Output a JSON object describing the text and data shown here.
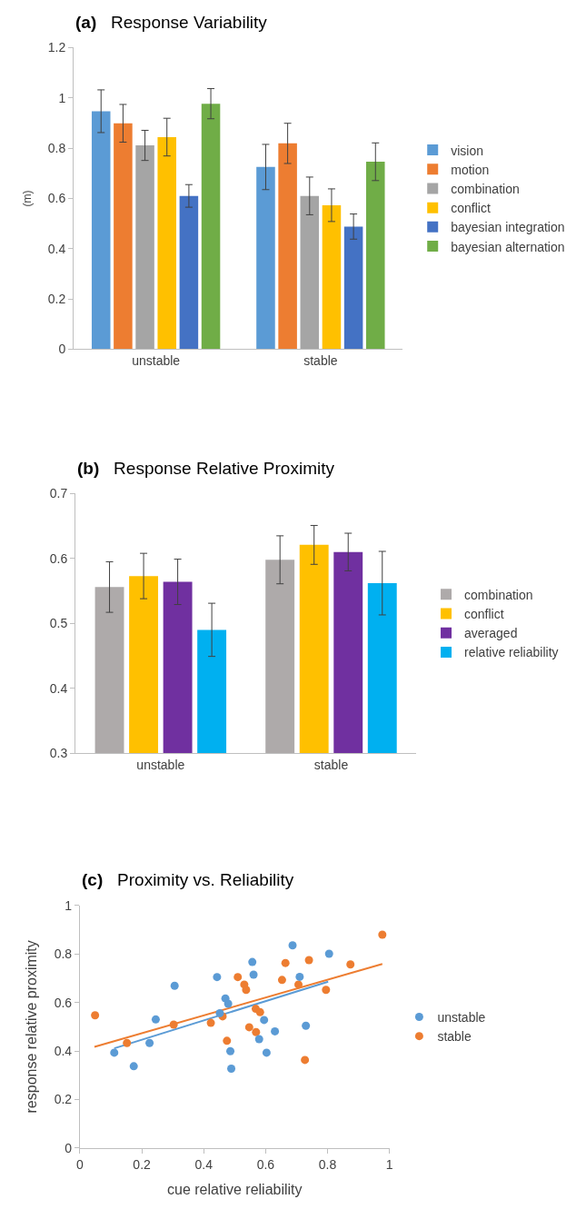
{
  "chart_data": [
    {
      "type": "bar",
      "title": "(a) Response Variability",
      "ylabel": "(m)",
      "categories": [
        "unstable",
        "stable"
      ],
      "ylim": [
        0,
        1.2
      ],
      "yticks": [
        0,
        0.2,
        0.4,
        0.6,
        0.8,
        1,
        1.2
      ],
      "legend": "right",
      "series": [
        {
          "name": "vision",
          "color": "#5b9bd5",
          "values": [
            0.947,
            0.725
          ],
          "errors": [
            0.085,
            0.09
          ]
        },
        {
          "name": "motion",
          "color": "#ed7d31",
          "values": [
            0.899,
            0.819
          ],
          "errors": [
            0.075,
            0.08
          ]
        },
        {
          "name": "combination",
          "color": "#a5a5a5",
          "values": [
            0.811,
            0.61
          ],
          "errors": [
            0.06,
            0.075
          ]
        },
        {
          "name": "conflict",
          "color": "#ffc000",
          "values": [
            0.844,
            0.573
          ],
          "errors": [
            0.075,
            0.065
          ]
        },
        {
          "name": "bayesian integration",
          "color": "#4472c4",
          "values": [
            0.61,
            0.488
          ],
          "errors": [
            0.045,
            0.05
          ]
        },
        {
          "name": "bayesian alternation",
          "color": "#70ad47",
          "values": [
            0.977,
            0.746
          ],
          "errors": [
            0.06,
            0.075
          ]
        }
      ]
    },
    {
      "type": "bar",
      "title": "(b) Response Relative Proximity",
      "categories": [
        "unstable",
        "stable"
      ],
      "ylim": [
        0.3,
        0.7
      ],
      "yticks": [
        0.3,
        0.4,
        0.5,
        0.6,
        0.7
      ],
      "legend": "right",
      "series": [
        {
          "name": "combination",
          "color": "#aeaaaa",
          "values": [
            0.556,
            0.598
          ],
          "errors": [
            0.039,
            0.037
          ]
        },
        {
          "name": "conflict",
          "color": "#ffc000",
          "values": [
            0.573,
            0.621
          ],
          "errors": [
            0.035,
            0.03
          ]
        },
        {
          "name": "averaged",
          "color": "#7030a0",
          "values": [
            0.564,
            0.61
          ],
          "errors": [
            0.035,
            0.029
          ]
        },
        {
          "name": "relative reliability",
          "color": "#00b0f0",
          "values": [
            0.49,
            0.562
          ],
          "errors": [
            0.041,
            0.049
          ]
        }
      ]
    },
    {
      "type": "scatter",
      "title": "(c) Proximity vs. Reliability",
      "xlabel": "cue relative reliability",
      "ylabel": "response relative proximity",
      "xlim": [
        0,
        1
      ],
      "xticks": [
        0,
        0.2,
        0.4,
        0.6,
        0.8,
        1
      ],
      "ylim": [
        0,
        1
      ],
      "yticks": [
        0,
        0.2,
        0.4,
        0.6,
        0.8,
        1
      ],
      "legend": "right",
      "marker": "circle",
      "series": [
        {
          "name": "unstable",
          "color": "#5b9bd5",
          "x": [
            0.111,
            0.174,
            0.225,
            0.245,
            0.306,
            0.443,
            0.452,
            0.47,
            0.479,
            0.486,
            0.489,
            0.557,
            0.561,
            0.579,
            0.595,
            0.603,
            0.63,
            0.687,
            0.71,
            0.73,
            0.805
          ],
          "values": [
            0.393,
            0.337,
            0.433,
            0.53,
            0.669,
            0.705,
            0.556,
            0.617,
            0.595,
            0.399,
            0.327,
            0.767,
            0.715,
            0.449,
            0.528,
            0.393,
            0.481,
            0.836,
            0.706,
            0.504,
            0.801
          ]
        },
        {
          "name": "stable",
          "color": "#ed7d31",
          "x": [
            0.049,
            0.152,
            0.303,
            0.423,
            0.461,
            0.475,
            0.51,
            0.531,
            0.537,
            0.547,
            0.568,
            0.569,
            0.582,
            0.653,
            0.664,
            0.706,
            0.727,
            0.74,
            0.795,
            0.874,
            0.977
          ],
          "values": [
            0.547,
            0.433,
            0.509,
            0.516,
            0.543,
            0.442,
            0.705,
            0.674,
            0.652,
            0.498,
            0.574,
            0.478,
            0.56,
            0.693,
            0.763,
            0.674,
            0.363,
            0.775,
            0.652,
            0.757,
            0.88
          ]
        },
        {
          "type": "line",
          "marker": "none",
          "color": "#5b9bd5",
          "x": [
            0.111,
            0.802
          ],
          "values": [
            0.411,
            0.686
          ]
        },
        {
          "type": "line",
          "marker": "none",
          "color": "#ed7d31",
          "x": [
            0.047,
            0.977
          ],
          "values": [
            0.417,
            0.759
          ]
        }
      ]
    }
  ]
}
